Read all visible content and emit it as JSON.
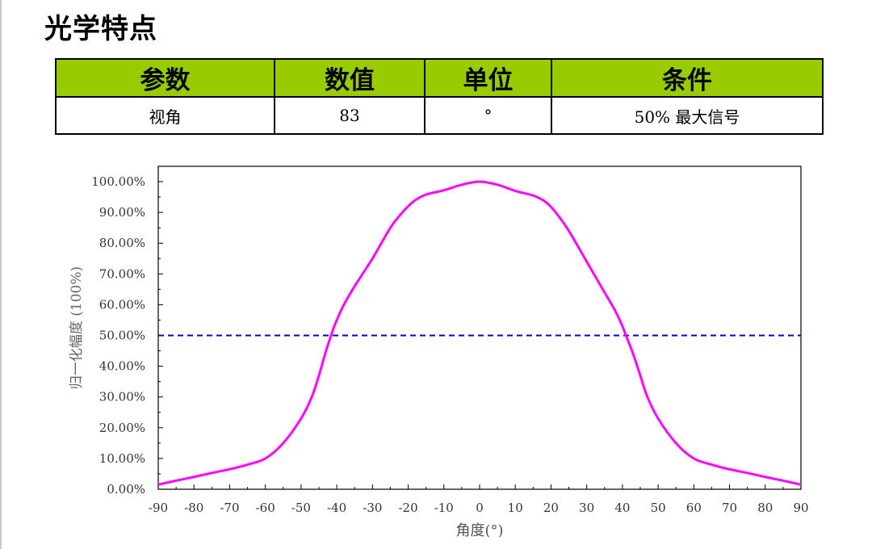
{
  "page": {
    "title": "光学特点"
  },
  "table": {
    "headers": [
      "参数",
      "数值",
      "单位",
      "条件"
    ],
    "rows": [
      [
        "视角",
        "83",
        "°",
        "50% 最大信号"
      ]
    ]
  },
  "colors": {
    "header_bg": "#99cc00",
    "curve": "#ff00ff",
    "reference_line": "#0000cc"
  },
  "chart_data": {
    "type": "line",
    "xlabel": "角度(°)",
    "ylabel": "归一化幅度 (100%)",
    "xlim": [
      -90,
      90
    ],
    "ylim": [
      0,
      100
    ],
    "x_ticks": [
      "-90",
      "-80",
      "-70",
      "-60",
      "-50",
      "-40",
      "-30",
      "-20",
      "-10",
      "0",
      "10",
      "20",
      "30",
      "40",
      "50",
      "60",
      "70",
      "80",
      "90"
    ],
    "y_ticks": [
      "0.00%",
      "10.00%",
      "20.00%",
      "30.00%",
      "40.00%",
      "50.00%",
      "60.00%",
      "70.00%",
      "80.00%",
      "90.00%",
      "100.00%"
    ],
    "series": [
      {
        "x": [
          -90,
          -85,
          -80,
          -75,
          -70,
          -65,
          -60,
          -55,
          -50,
          -47,
          -45,
          -43,
          -41,
          -40,
          -38,
          -35,
          -30,
          -25,
          -22,
          -20,
          -18,
          -15,
          -10,
          -5,
          0,
          5,
          10,
          15,
          18,
          20,
          22,
          25,
          30,
          35,
          38,
          40,
          41,
          43,
          45,
          47,
          50,
          55,
          60,
          65,
          70,
          75,
          80,
          85,
          90
        ],
        "y": [
          1.5,
          2.8,
          4.0,
          5.3,
          6.5,
          8.0,
          10.0,
          15.0,
          23.0,
          30.0,
          37.0,
          45.0,
          52.0,
          55.0,
          60.0,
          66.0,
          75.0,
          85.0,
          89.5,
          92.0,
          94.0,
          95.8,
          97.2,
          99.0,
          100.0,
          99.0,
          97.0,
          95.5,
          93.8,
          91.8,
          89.0,
          84.0,
          74.0,
          64.0,
          58.0,
          53.0,
          50.0,
          44.0,
          37.0,
          30.0,
          23.0,
          15.0,
          10.0,
          8.0,
          6.5,
          5.3,
          4.0,
          2.8,
          1.5
        ]
      },
      {
        "x": [
          -90,
          90
        ],
        "y": [
          50,
          50
        ],
        "style": "dashed"
      }
    ],
    "grid": false,
    "legend": "none"
  }
}
